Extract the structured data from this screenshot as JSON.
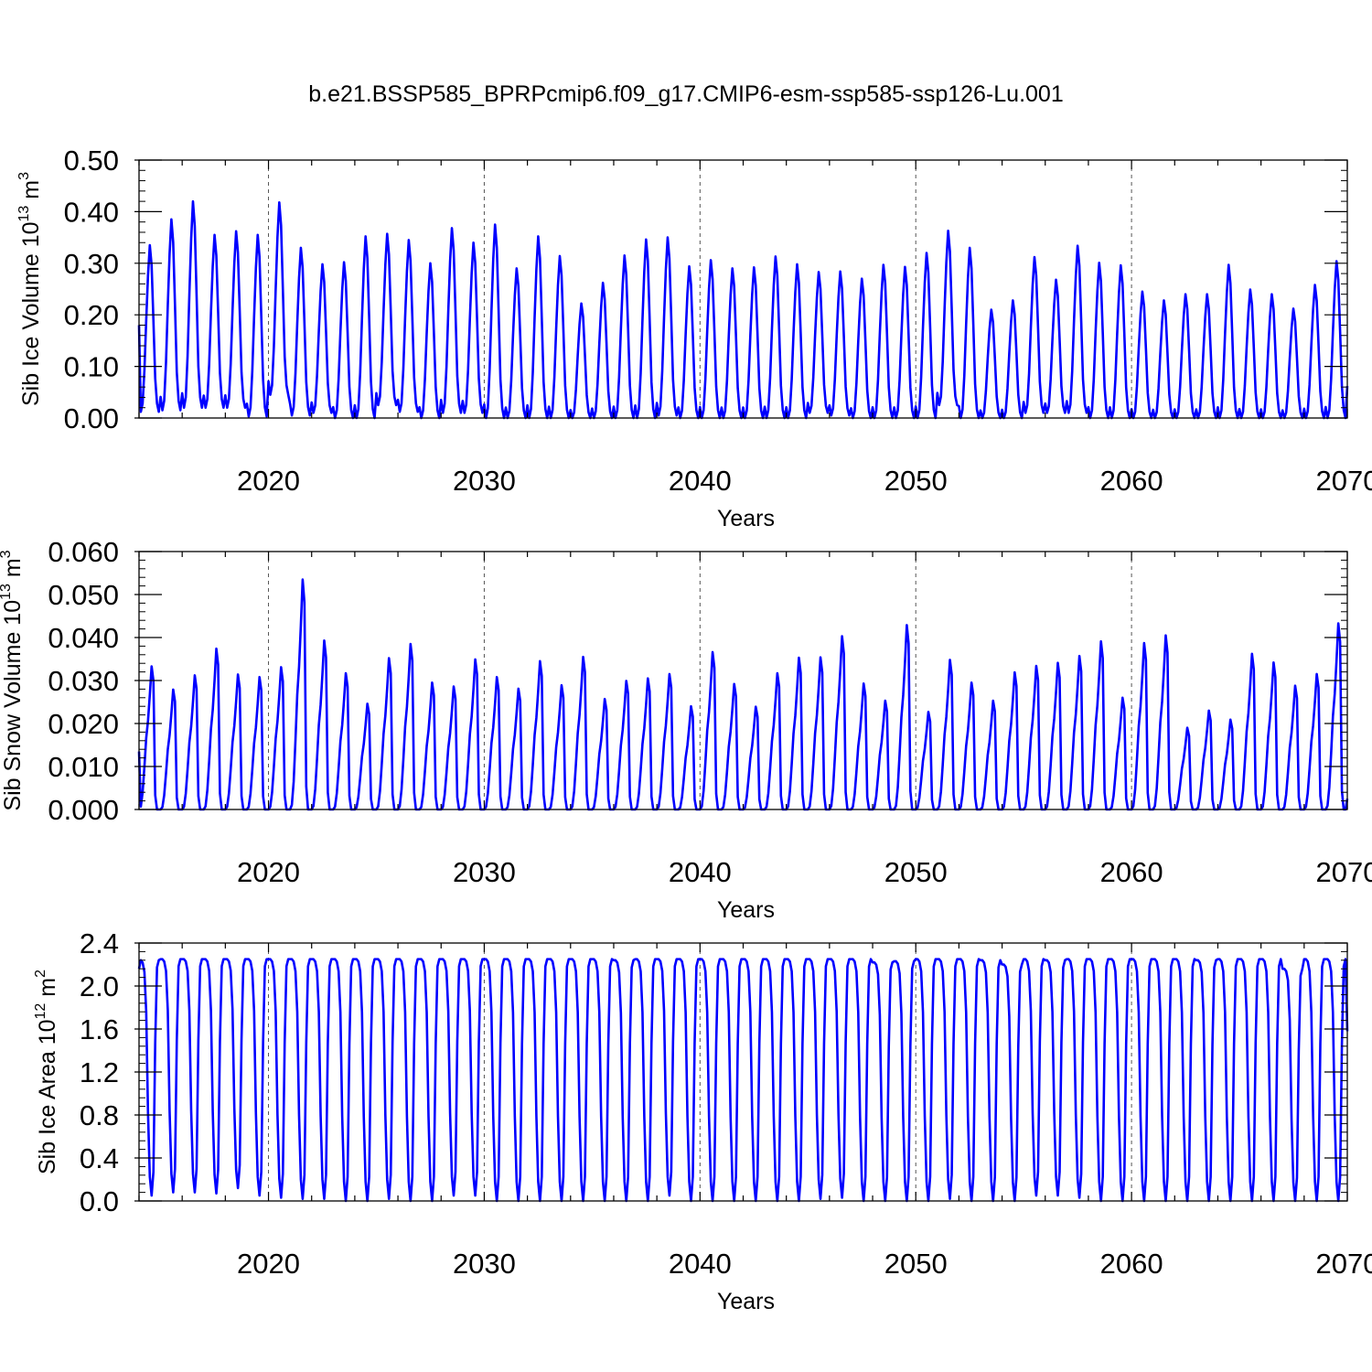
{
  "figure_title": "b.e21.BSSP585_BPRPcmip6.f09_g17.CMIP6-esm-ssp585-ssp126-Lu.001",
  "colors": {
    "line": "#0000ff",
    "axis": "#000000",
    "grid": "#555555",
    "background": "#ffffff"
  },
  "chart_data": [
    {
      "type": "line",
      "title": "b.e21.BSSP585_BPRPcmip6.f09_g17.CMIP6-esm-ssp585-ssp126-Lu.001",
      "xlabel": "Years",
      "ylabel_text": "Sib Ice Volume 10",
      "ylabel_exp": "13",
      "ylabel_unit": " m",
      "ylabel_unit_exp": "3",
      "xlim": [
        2014.0,
        2070.0
      ],
      "ylim": [
        0.0,
        0.5
      ],
      "xticks": [
        2020,
        2030,
        2040,
        2050,
        2060,
        2070
      ],
      "xtick_labels": [
        "2020",
        "2030",
        "2040",
        "2050",
        "2060",
        "2070"
      ],
      "yticks": [
        0.0,
        0.1,
        0.2,
        0.3,
        0.4,
        0.5
      ],
      "ytick_labels": [
        "0.00",
        "0.10",
        "0.20",
        "0.30",
        "0.40",
        "0.50"
      ],
      "grid": "vertical dashed at x ticks",
      "series": [
        {
          "name": "Sib Ice Volume",
          "x_start": 2014.0,
          "x_step": 0.08333333,
          "shape": "seasonal",
          "annual_max": [
            0.335,
            0.385,
            0.42,
            0.355,
            0.362,
            0.355,
            0.418,
            0.33,
            0.298,
            0.302,
            0.352,
            0.357,
            0.345,
            0.3,
            0.368,
            0.34,
            0.375,
            0.29,
            0.352,
            0.314,
            0.222,
            0.262,
            0.315,
            0.346,
            0.35,
            0.294,
            0.306,
            0.29,
            0.292,
            0.313,
            0.298,
            0.283,
            0.284,
            0.27,
            0.297,
            0.293,
            0.32,
            0.363,
            0.33,
            0.21,
            0.228,
            0.312,
            0.268,
            0.334,
            0.301,
            0.296,
            0.245,
            0.228,
            0.24,
            0.24,
            0.297,
            0.249,
            0.24,
            0.212,
            0.258,
            0.304
          ],
          "annual_min": [
            0.012,
            0.015,
            0.02,
            0.02,
            0.02,
            0.003,
            0.045,
            0.005,
            0.01,
            0.0,
            0.0,
            0.025,
            0.012,
            0.0,
            0.01,
            0.01,
            0.0,
            0.0,
            0.0,
            0.0,
            0.0,
            0.0,
            0.0,
            0.0,
            0.005,
            0.0,
            0.0,
            0.0,
            0.0,
            0.0,
            0.0,
            0.01,
            0.005,
            0.0,
            0.0,
            0.0,
            0.0,
            0.025,
            0.0,
            0.0,
            0.0,
            0.01,
            0.01,
            0.01,
            0.0,
            0.0,
            0.0,
            0.0,
            0.0,
            0.0,
            0.0,
            0.0,
            0.0,
            0.0,
            0.0,
            0.0
          ],
          "start_value": 0.18,
          "end_value": 0.062
        }
      ]
    },
    {
      "type": "line",
      "xlabel": "Years",
      "ylabel_text": "Sib Snow Volume 10",
      "ylabel_exp": "13",
      "ylabel_unit": " m",
      "ylabel_unit_exp": "3",
      "xlim": [
        2014.0,
        2070.0
      ],
      "ylim": [
        0.0,
        0.06
      ],
      "xticks": [
        2020,
        2030,
        2040,
        2050,
        2060,
        2070
      ],
      "xtick_labels": [
        "2020",
        "2030",
        "2040",
        "2050",
        "2060",
        "2070"
      ],
      "yticks": [
        0.0,
        0.01,
        0.02,
        0.03,
        0.04,
        0.05,
        0.06
      ],
      "ytick_labels": [
        "0.000",
        "0.010",
        "0.020",
        "0.030",
        "0.040",
        "0.050",
        "0.060"
      ],
      "grid": "vertical dashed at x ticks",
      "series": [
        {
          "name": "Sib Snow Volume",
          "x_start": 2014.0,
          "x_step": 0.08333333,
          "shape": "peaked",
          "annual_max": [
            0.0333,
            0.0279,
            0.0312,
            0.0374,
            0.0314,
            0.0308,
            0.0331,
            0.0535,
            0.0393,
            0.0317,
            0.0246,
            0.0352,
            0.0385,
            0.0295,
            0.0286,
            0.0349,
            0.0308,
            0.0281,
            0.0345,
            0.0289,
            0.0355,
            0.0257,
            0.0299,
            0.0305,
            0.0315,
            0.024,
            0.0366,
            0.0292,
            0.0239,
            0.0317,
            0.0353,
            0.0354,
            0.0403,
            0.0293,
            0.0253,
            0.0429,
            0.0227,
            0.0348,
            0.0295,
            0.0253,
            0.0319,
            0.0334,
            0.0341,
            0.0357,
            0.0391,
            0.026,
            0.0387,
            0.0405,
            0.019,
            0.023,
            0.0209,
            0.0362,
            0.0342,
            0.0288,
            0.0315,
            0.0433
          ],
          "start_value": 0.0135,
          "end_value": 0.0025
        }
      ]
    },
    {
      "type": "line",
      "xlabel": "Years",
      "ylabel_text": "Sib Ice Area 10",
      "ylabel_exp": "12",
      "ylabel_unit": " m",
      "ylabel_unit_exp": "2",
      "xlim": [
        2014.0,
        2070.0
      ],
      "ylim": [
        0.0,
        2.4
      ],
      "xticks": [
        2020,
        2030,
        2040,
        2050,
        2060,
        2070
      ],
      "xtick_labels": [
        "2020",
        "2030",
        "2040",
        "2050",
        "2060",
        "2070"
      ],
      "yticks": [
        0.0,
        0.4,
        0.8,
        1.2,
        1.6,
        2.0,
        2.4
      ],
      "ytick_labels": [
        "0.0",
        "0.4",
        "0.8",
        "1.2",
        "1.6",
        "2.0",
        "2.4"
      ],
      "grid": "vertical dashed at x ticks",
      "series": [
        {
          "name": "Sib Ice Area",
          "x_start": 2014.0,
          "x_step": 0.08333333,
          "shape": "plateau",
          "annual_max": [
            2.24,
            2.25,
            2.25,
            2.25,
            2.25,
            2.25,
            2.25,
            2.25,
            2.25,
            2.25,
            2.25,
            2.25,
            2.25,
            2.25,
            2.25,
            2.25,
            2.25,
            2.25,
            2.25,
            2.25,
            2.25,
            2.25,
            2.24,
            2.25,
            2.25,
            2.25,
            2.25,
            2.25,
            2.25,
            2.25,
            2.25,
            2.25,
            2.25,
            2.25,
            2.22,
            2.23,
            2.25,
            2.25,
            2.25,
            2.24,
            2.2,
            2.25,
            2.24,
            2.25,
            2.25,
            2.25,
            2.25,
            2.25,
            2.25,
            2.24,
            2.25,
            2.25,
            2.25,
            2.16,
            2.25,
            2.25
          ],
          "annual_min": [
            0.05,
            0.08,
            0.08,
            0.07,
            0.12,
            0.05,
            0.03,
            0.02,
            0.02,
            0.0,
            0.0,
            0.02,
            0.0,
            0.0,
            0.05,
            0.05,
            0.0,
            0.0,
            0.0,
            0.0,
            0.0,
            0.0,
            0.0,
            0.0,
            0.05,
            0.0,
            0.0,
            0.0,
            0.0,
            0.0,
            0.0,
            0.02,
            0.03,
            0.0,
            0.0,
            0.0,
            0.0,
            0.02,
            0.0,
            0.0,
            0.0,
            0.05,
            0.05,
            0.03,
            0.0,
            0.0,
            0.0,
            0.0,
            0.0,
            0.0,
            0.0,
            0.0,
            0.0,
            0.0,
            0.0,
            0.0
          ],
          "start_value": 2.16,
          "end_value": 1.58
        }
      ]
    }
  ]
}
